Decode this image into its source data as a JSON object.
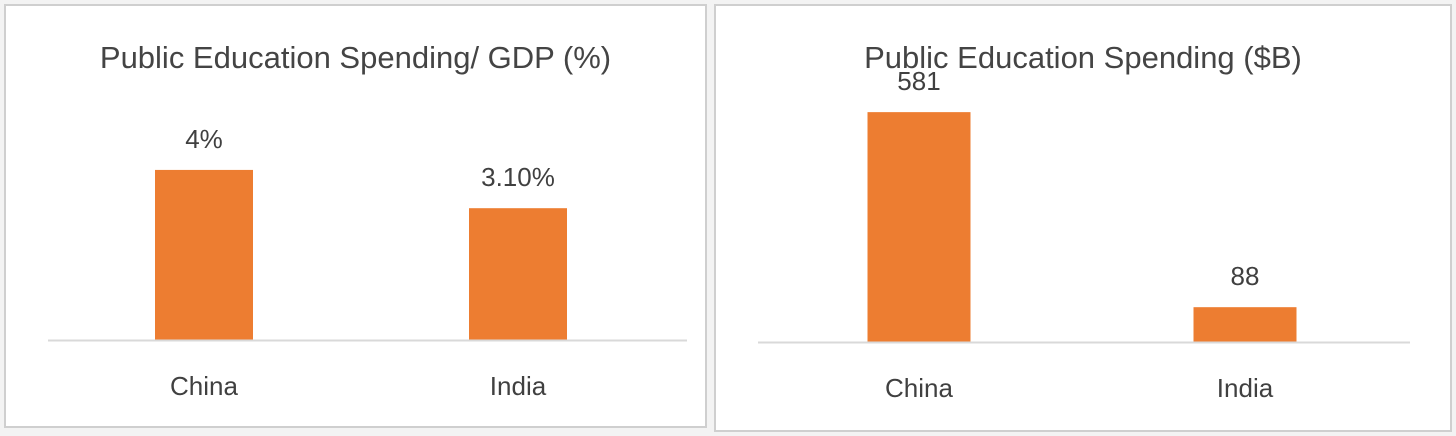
{
  "colors": {
    "bar": "#ED7D31",
    "axis": "#D9D9D9",
    "text": "#404040",
    "title": "#444444"
  },
  "chart_data": [
    {
      "type": "bar",
      "title": "Public Education Spending/ GDP (%)",
      "categories": [
        "China",
        "India"
      ],
      "values": [
        4,
        3.1
      ],
      "data_labels": [
        "4%",
        "3.10%"
      ],
      "ylim": [
        0,
        6.35
      ],
      "xlabel": "",
      "ylabel": "",
      "grid": false,
      "legend": "none"
    },
    {
      "type": "bar",
      "title": "Public Education Spending ($B)",
      "categories": [
        "China",
        "India"
      ],
      "values": [
        581,
        88
      ],
      "data_labels": [
        "581",
        "88"
      ],
      "ylim": [
        0,
        733
      ],
      "xlabel": "",
      "ylabel": "",
      "grid": false,
      "legend": "none"
    }
  ]
}
